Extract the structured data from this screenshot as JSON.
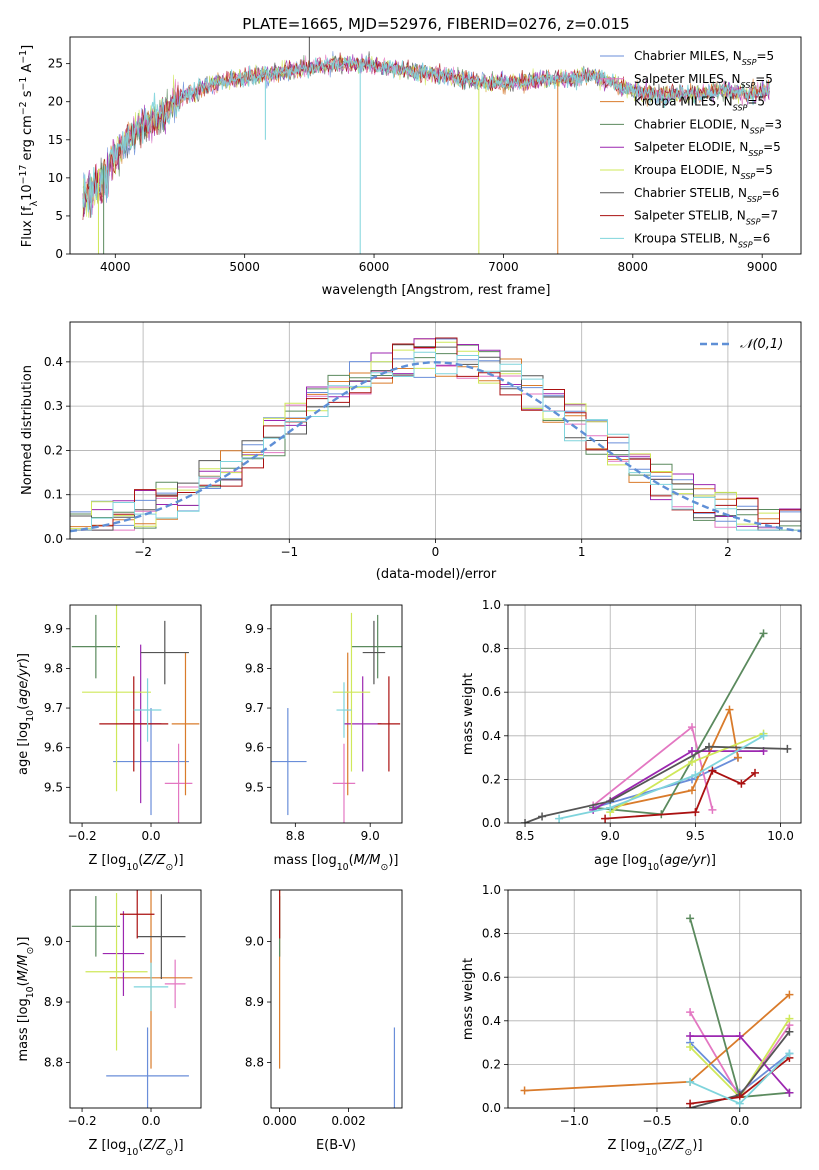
{
  "title": "PLATE=1665, MJD=52976, FIBERID=0276, z=0.015",
  "colors": [
    "#6a8ed9",
    "#e377c2",
    "#d97b2b",
    "#5b8a5e",
    "#9c27b0",
    "#cfe85a",
    "#555555",
    "#aa1111",
    "#7fd4dc"
  ],
  "legend_labels": [
    {
      "name": "Chabrier MILES",
      "sub": "SSP",
      "n": "=5"
    },
    {
      "name": "Salpeter MILES",
      "sub": "SSP",
      "n": "=5"
    },
    {
      "name": "Kroupa MILES",
      "sub": "SSP",
      "n": "=5"
    },
    {
      "name": "Chabrier ELODIE",
      "sub": "SSP",
      "n": "=3"
    },
    {
      "name": "Salpeter ELODIE",
      "sub": "SSP",
      "n": "=5"
    },
    {
      "name": "Kroupa ELODIE",
      "sub": "SSP",
      "n": "=5"
    },
    {
      "name": "Chabrier STELIB",
      "sub": "SSP",
      "n": "=6"
    },
    {
      "name": "Salpeter STELIB",
      "sub": "SSP",
      "n": "=7"
    },
    {
      "name": "Kroupa STELIB",
      "sub": "SSP",
      "n": "=6"
    }
  ],
  "chart_data": [
    {
      "id": "spectrum",
      "type": "line",
      "xlabel": "wavelength [Angstrom, rest frame]",
      "ylabel": "Flux [f_λ 10^-17 erg cm^-2 s^-1 A^-1]",
      "xlim": [
        3650,
        9300
      ],
      "ylim": [
        0,
        28.5
      ],
      "xticks": [
        4000,
        5000,
        6000,
        7000,
        8000,
        9000
      ],
      "yticks": [
        0,
        5,
        10,
        15,
        20,
        25
      ],
      "x": [
        3750,
        3800,
        3850,
        3900,
        3950,
        4000,
        4100,
        4200,
        4300,
        4400,
        4500,
        4700,
        4900,
        5100,
        5200,
        5300,
        5500,
        5700,
        5900,
        6100,
        6300,
        6500,
        6700,
        6900,
        7100,
        7300,
        7500,
        7700,
        7900,
        8100,
        8300,
        8500,
        8700,
        8900,
        9050
      ],
      "y": [
        9,
        10,
        11,
        11.5,
        12,
        13,
        15,
        17,
        17.5,
        19,
        20.5,
        22,
        23,
        23.5,
        23.5,
        24,
        24.5,
        25,
        25,
        24.5,
        24,
        23.5,
        23,
        22.5,
        22.5,
        23,
        23,
        23.5,
        22,
        21,
        21,
        21,
        21.5,
        21,
        21.5
      ],
      "notes": "observed spectrum with overlaid model fits, one colour per model"
    },
    {
      "id": "residuals",
      "type": "histogram",
      "xlabel": "(data-model)/error",
      "ylabel": "Normed distribution",
      "xlim": [
        -2.5,
        2.5
      ],
      "ylim": [
        0,
        0.49
      ],
      "xticks": [
        -2,
        -1,
        0,
        1,
        2
      ],
      "yticks": [
        0,
        0.1,
        0.2,
        0.3,
        0.4
      ],
      "legend": "𝒩(0,1)"
    },
    {
      "id": "z_age",
      "type": "errorbar",
      "xlabel": "Z [log10(Z/Z⊙)]",
      "ylabel": "age  [log10(age/yr)]",
      "xlim": [
        -0.235,
        0.145
      ],
      "ylim": [
        9.41,
        9.96
      ],
      "xticks": [
        -0.2,
        0.0
      ],
      "yticks": [
        9.5,
        9.6,
        9.7,
        9.8,
        9.9
      ],
      "points": [
        {
          "color": 0,
          "x": 0.0,
          "xerr": 0.11,
          "y": 9.565,
          "yerr": 0.135
        },
        {
          "color": 1,
          "x": 0.08,
          "xerr": 0.04,
          "y": 9.51,
          "yerr": 0.1
        },
        {
          "color": 2,
          "x": 0.1,
          "xerr": 0.04,
          "y": 9.66,
          "yerr": 0.18
        },
        {
          "color": 3,
          "x": -0.16,
          "xerr": 0.07,
          "y": 9.855,
          "yerr": 0.08
        },
        {
          "color": 4,
          "x": -0.03,
          "xerr": 0.06,
          "y": 9.66,
          "yerr": 0.2
        },
        {
          "color": 5,
          "x": -0.1,
          "xerr": 0.1,
          "y": 9.74,
          "yerr": 0.25
        },
        {
          "color": 6,
          "x": 0.04,
          "xerr": 0.07,
          "y": 9.84,
          "yerr": 0.08
        },
        {
          "color": 7,
          "x": -0.05,
          "xerr": 0.1,
          "y": 9.66,
          "yerr": 0.12
        },
        {
          "color": 8,
          "x": -0.01,
          "xerr": 0.04,
          "y": 9.695,
          "yerr": 0.08
        }
      ]
    },
    {
      "id": "mass_age",
      "type": "errorbar",
      "xlabel": "mass [log10(M/M⊙)]",
      "xlim": [
        8.735,
        9.085
      ],
      "ylim": [
        9.41,
        9.96
      ],
      "xticks": [
        8.8,
        9.0
      ],
      "yticks": [
        9.5,
        9.6,
        9.7,
        9.8,
        9.9
      ],
      "points": [
        {
          "color": 0,
          "x": 8.78,
          "xerr": 0.05,
          "y": 9.565,
          "yerr": 0.135
        },
        {
          "color": 1,
          "x": 8.93,
          "xerr": 0.03,
          "y": 9.51,
          "yerr": 0.1
        },
        {
          "color": 2,
          "x": 8.94,
          "xerr": 0.01,
          "y": 9.66,
          "yerr": 0.18
        },
        {
          "color": 3,
          "x": 9.02,
          "xerr": 0.07,
          "y": 9.855,
          "yerr": 0.08
        },
        {
          "color": 4,
          "x": 8.98,
          "xerr": 0.05,
          "y": 9.66,
          "yerr": 0.12
        },
        {
          "color": 5,
          "x": 8.95,
          "xerr": 0.05,
          "y": 9.74,
          "yerr": 0.2
        },
        {
          "color": 6,
          "x": 9.01,
          "xerr": 0.03,
          "y": 9.84,
          "yerr": 0.08
        },
        {
          "color": 7,
          "x": 9.05,
          "xerr": 0.03,
          "y": 9.66,
          "yerr": 0.12
        },
        {
          "color": 8,
          "x": 8.93,
          "xerr": 0.02,
          "y": 9.695,
          "yerr": 0.07
        }
      ]
    },
    {
      "id": "age_weight",
      "type": "line",
      "xlabel": "age  [log10(age/yr)]",
      "ylabel": "mass weight",
      "xlim": [
        8.4,
        10.12
      ],
      "ylim": [
        0,
        1.0
      ],
      "xticks": [
        8.5,
        9.0,
        9.5,
        10.0
      ],
      "yticks": [
        0.0,
        0.2,
        0.4,
        0.6,
        0.8,
        1.0
      ],
      "series": [
        {
          "color": 0,
          "x": [
            8.9,
            9.48,
            9.75
          ],
          "y": [
            0.07,
            0.2,
            0.3
          ]
        },
        {
          "color": 1,
          "x": [
            8.9,
            9.48,
            9.6
          ],
          "y": [
            0.08,
            0.44,
            0.06
          ]
        },
        {
          "color": 2,
          "x": [
            9.0,
            9.48,
            9.7,
            9.75
          ],
          "y": [
            0.07,
            0.15,
            0.52,
            0.3
          ]
        },
        {
          "color": 3,
          "x": [
            8.9,
            9.3,
            9.9
          ],
          "y": [
            0.07,
            0.04,
            0.87
          ]
        },
        {
          "color": 4,
          "x": [
            8.9,
            9.48,
            9.9
          ],
          "y": [
            0.06,
            0.33,
            0.33
          ]
        },
        {
          "color": 5,
          "x": [
            9.0,
            9.48,
            9.9
          ],
          "y": [
            0.05,
            0.28,
            0.41
          ]
        },
        {
          "color": 6,
          "x": [
            8.5,
            8.6,
            9.0,
            9.58,
            10.04
          ],
          "y": [
            0.0,
            0.03,
            0.1,
            0.35,
            0.34
          ]
        },
        {
          "color": 7,
          "x": [
            8.97,
            9.5,
            9.6,
            9.77,
            9.85
          ],
          "y": [
            0.02,
            0.05,
            0.24,
            0.18,
            0.23
          ]
        },
        {
          "color": 8,
          "x": [
            8.7,
            9.0,
            9.5,
            9.9
          ],
          "y": [
            0.02,
            0.07,
            0.22,
            0.4
          ]
        }
      ]
    },
    {
      "id": "z_mass",
      "type": "errorbar",
      "xlabel": "Z [log10(Z/Z⊙)]",
      "ylabel": "mass [log10(M/M⊙)]",
      "xlim": [
        -0.235,
        0.145
      ],
      "ylim": [
        8.725,
        9.085
      ],
      "xticks": [
        -0.2,
        0.0
      ],
      "yticks": [
        8.8,
        8.9,
        9.0
      ],
      "points": [
        {
          "color": 0,
          "x": -0.01,
          "xerr": 0.12,
          "y": 8.778,
          "yerr": 0.08
        },
        {
          "color": 1,
          "x": 0.07,
          "xerr": 0.03,
          "y": 8.93,
          "yerr": 0.04
        },
        {
          "color": 2,
          "x": 0.0,
          "xerr": 0.12,
          "y": 8.94,
          "yerr": 0.15
        },
        {
          "color": 3,
          "x": -0.16,
          "xerr": 0.07,
          "y": 9.025,
          "yerr": 0.05
        },
        {
          "color": 4,
          "x": -0.08,
          "xerr": 0.06,
          "y": 8.98,
          "yerr": 0.07
        },
        {
          "color": 5,
          "x": -0.1,
          "xerr": 0.09,
          "y": 8.95,
          "yerr": 0.13
        },
        {
          "color": 6,
          "x": 0.03,
          "xerr": 0.07,
          "y": 9.008,
          "yerr": 0.07
        },
        {
          "color": 7,
          "x": -0.04,
          "xerr": 0.05,
          "y": 9.045,
          "yerr": 0.04
        },
        {
          "color": 8,
          "x": 0.0,
          "xerr": 0.05,
          "y": 8.925,
          "yerr": 0.04
        }
      ]
    },
    {
      "id": "ebv_mass",
      "type": "errorbar",
      "xlabel": "E(B-V)",
      "xlim": [
        -0.00025,
        0.00355
      ],
      "ylim": [
        8.725,
        9.085
      ],
      "xticks": [
        0.0,
        0.002
      ],
      "yticks": [
        8.8,
        8.9,
        9.0
      ],
      "points": [
        {
          "color": 0,
          "x": 0.00333,
          "xerr": 0,
          "y": 8.778,
          "yerr": 0.08
        },
        {
          "color": 2,
          "x": 0.0,
          "xerr": 0,
          "y": 8.94,
          "yerr": 0.15
        },
        {
          "color": 3,
          "x": 0.0,
          "xerr": 0,
          "y": 9.025,
          "yerr": 0.05
        },
        {
          "color": 7,
          "x": 0.0,
          "xerr": 0,
          "y": 9.045,
          "yerr": 0.04
        }
      ]
    },
    {
      "id": "z_weight",
      "type": "line",
      "xlabel": "Z [log10(Z/Z⊙)]",
      "ylabel": "mass weight",
      "xlim": [
        -1.4,
        0.37
      ],
      "ylim": [
        0,
        1.0
      ],
      "xticks": [
        -1.0,
        -0.5,
        0.0
      ],
      "yticks": [
        0.0,
        0.2,
        0.4,
        0.6,
        0.8,
        1.0
      ],
      "series": [
        {
          "color": 0,
          "x": [
            -0.3,
            0.0,
            0.3
          ],
          "y": [
            0.3,
            0.07,
            0.25
          ]
        },
        {
          "color": 1,
          "x": [
            -0.3,
            0.0,
            0.3
          ],
          "y": [
            0.44,
            0.05,
            0.38
          ]
        },
        {
          "color": 2,
          "x": [
            -1.3,
            -0.3,
            0.3
          ],
          "y": [
            0.08,
            0.12,
            0.52
          ]
        },
        {
          "color": 3,
          "x": [
            -0.3,
            0.0,
            0.3
          ],
          "y": [
            0.87,
            0.05,
            0.07
          ]
        },
        {
          "color": 4,
          "x": [
            -0.3,
            0.0,
            0.3
          ],
          "y": [
            0.33,
            0.33,
            0.07
          ]
        },
        {
          "color": 5,
          "x": [
            -0.3,
            0.0,
            0.3
          ],
          "y": [
            0.28,
            0.05,
            0.41
          ]
        },
        {
          "color": 6,
          "x": [
            -0.3,
            0.0,
            0.3
          ],
          "y": [
            0.0,
            0.06,
            0.35
          ]
        },
        {
          "color": 7,
          "x": [
            -0.3,
            0.0,
            0.3
          ],
          "y": [
            0.02,
            0.05,
            0.23
          ]
        },
        {
          "color": 8,
          "x": [
            -0.3,
            0.0,
            0.3
          ],
          "y": [
            0.12,
            0.02,
            0.25
          ]
        }
      ]
    }
  ]
}
